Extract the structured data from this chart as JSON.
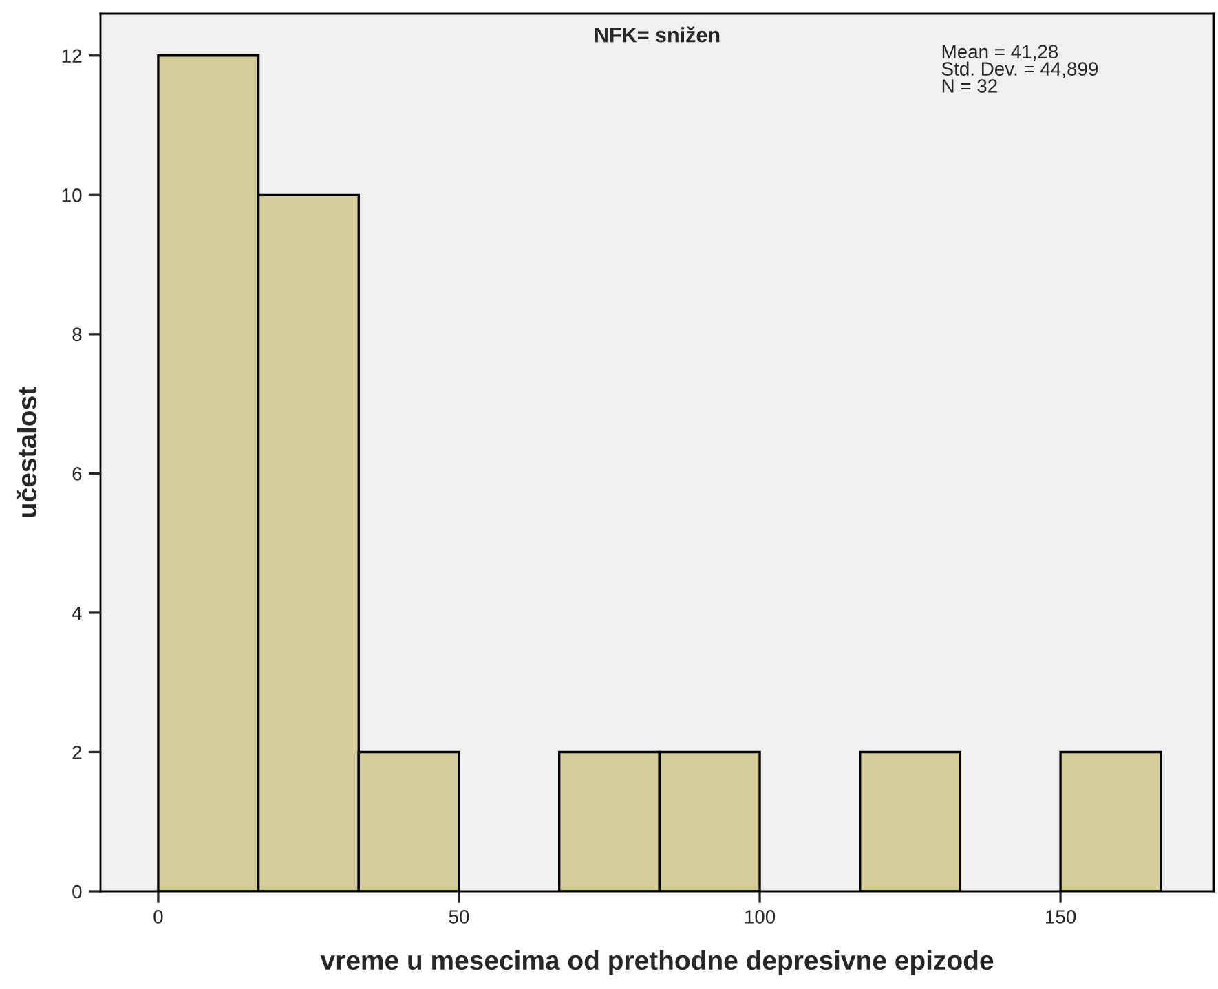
{
  "chart_data": {
    "type": "histogram",
    "title": "NFK= snižen",
    "xlabel": "vreme u mesecima od prethodne depresivne epizode",
    "ylabel": "učestalost",
    "bins": [
      0,
      16.67,
      33.33,
      50,
      66.67,
      83.33,
      100,
      116.67,
      133.33,
      150,
      166.67
    ],
    "values": [
      12,
      10,
      2,
      0,
      2,
      2,
      0,
      2,
      0,
      2
    ],
    "color": "#d3ce98",
    "xlim": [
      -9.6,
      175.5
    ],
    "xticks": [
      0,
      50,
      100,
      150
    ],
    "ylim": [
      0,
      12.6
    ],
    "yticks": [
      0,
      2,
      4,
      6,
      8,
      10,
      12
    ],
    "annotations": [
      "Mean = 41,28\nStd. Dev. = 44,899\nN = 32"
    ],
    "grid": false
  }
}
